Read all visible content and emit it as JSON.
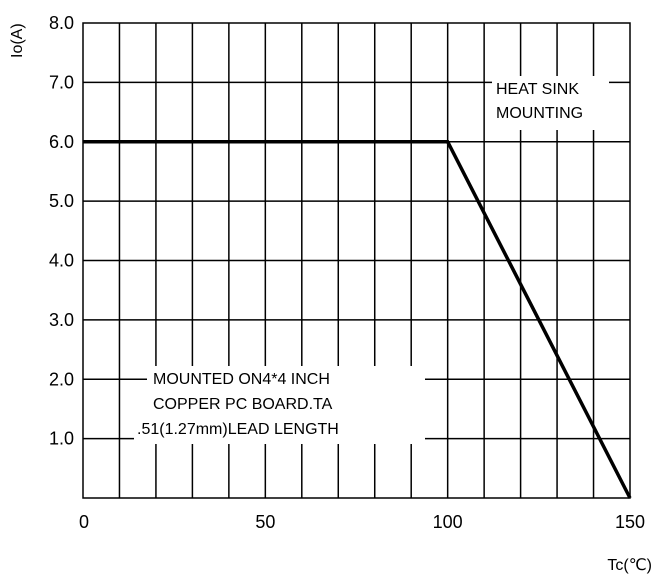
{
  "chart_data": {
    "type": "line",
    "title": "",
    "xlabel": "Tc(℃)",
    "ylabel": "Io(A)",
    "xlim": [
      0,
      150
    ],
    "ylim": [
      0,
      8
    ],
    "grid": true,
    "x_ticks": [
      {
        "value": 0,
        "label": "0"
      },
      {
        "value": 50,
        "label": "50"
      },
      {
        "value": 100,
        "label": "100"
      },
      {
        "value": 150,
        "label": "150"
      }
    ],
    "y_ticks": [
      {
        "value": 1,
        "label": "1.0"
      },
      {
        "value": 2,
        "label": "2.0"
      },
      {
        "value": 3,
        "label": "3.0"
      },
      {
        "value": 4,
        "label": "4.0"
      },
      {
        "value": 5,
        "label": "5.0"
      },
      {
        "value": 6,
        "label": "6.0"
      },
      {
        "value": 7,
        "label": "7.0"
      },
      {
        "value": 8,
        "label": "8.0"
      }
    ],
    "series": [
      {
        "x": [
          0,
          100,
          150
        ],
        "y": [
          6.0,
          6.0,
          0.0
        ],
        "color": "#000000"
      }
    ],
    "annotations": {
      "heat_sink": [
        "HEAT SINK",
        "MOUNTING"
      ],
      "pc_board": [
        "MOUNTED ON4*4 INCH",
        "COPPER PC BOARD.TA",
        ".51(1.27mm)LEAD LENGTH"
      ]
    }
  }
}
